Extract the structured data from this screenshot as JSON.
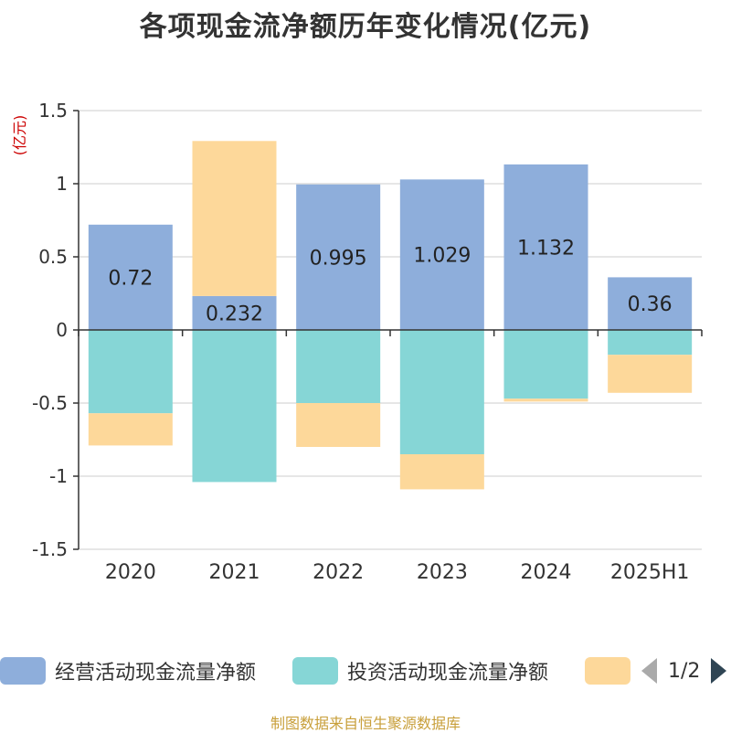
{
  "title": "各项现金流净额历年变化情况(亿元)",
  "unit_label": "(亿元)",
  "source": "制图数据来自恒生聚源数据库",
  "legend": {
    "items": [
      {
        "label": "经营活动现金流量净额",
        "color": "#8eaedb"
      },
      {
        "label": "投资活动现金流量净额",
        "color": "#86d6d6"
      },
      {
        "label": "",
        "color": "#fdd89a"
      }
    ],
    "page": "1/2"
  },
  "chart_data": {
    "type": "bar",
    "stacked": true,
    "categories": [
      "2020",
      "2021",
      "2022",
      "2023",
      "2024",
      "2025H1"
    ],
    "ylim": [
      -1.5,
      1.5
    ],
    "yticks": [
      1.5,
      1,
      0.5,
      0,
      -0.5,
      -1,
      -1.5
    ],
    "ytick_labels": [
      "1.5",
      "1",
      "0.5",
      "0",
      "-0.5",
      "-1",
      "-1.5"
    ],
    "grid": true,
    "legend_position": "bottom",
    "series": [
      {
        "name": "经营活动现金流量净额",
        "color": "#8eaedb",
        "values": [
          0.72,
          0.232,
          0.995,
          1.029,
          1.132,
          0.36
        ],
        "labels": [
          "0.72",
          "0.232",
          "0.995",
          "1.029",
          "1.132",
          "0.36"
        ]
      },
      {
        "name": "投资活动现金流量净额",
        "color": "#86d6d6",
        "values": [
          -0.57,
          -1.04,
          -0.5,
          -0.85,
          -0.47,
          -0.17
        ]
      },
      {
        "color": "#fdd89a",
        "values": [
          -0.22,
          1.06,
          -0.3,
          -0.24,
          -0.02,
          -0.26
        ]
      }
    ]
  }
}
